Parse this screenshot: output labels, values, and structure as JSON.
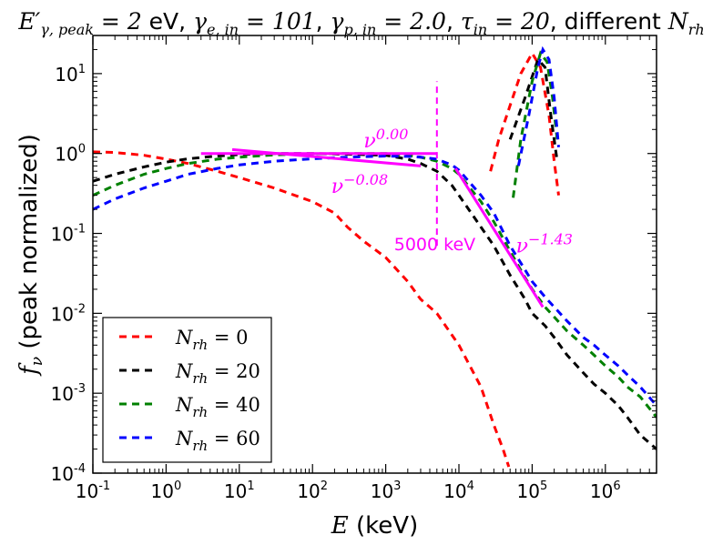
{
  "chart_data": {
    "type": "line",
    "title": {
      "parts": [
        {
          "text": "E′",
          "math": true
        },
        {
          "text": "γ, peak",
          "math": true,
          "sub": true
        },
        {
          "text": " = 2",
          "math": true
        },
        {
          "text": " eV, ",
          "math": false
        },
        {
          "text": "γ",
          "math": true
        },
        {
          "text": "e, in",
          "math": true,
          "sub": true
        },
        {
          "text": " = 101",
          "math": true
        },
        {
          "text": ", ",
          "math": false
        },
        {
          "text": "γ",
          "math": true
        },
        {
          "text": "p, in",
          "math": true,
          "sub": true
        },
        {
          "text": " = 2.0",
          "math": true
        },
        {
          "text": ", ",
          "math": false
        },
        {
          "text": "τ",
          "math": true
        },
        {
          "text": "in",
          "math": true,
          "sub": true
        },
        {
          "text": " = 20",
          "math": true
        },
        {
          "text": ", different ",
          "math": false
        },
        {
          "text": "N",
          "math": true
        },
        {
          "text": "rh",
          "math": true,
          "sub": true
        }
      ]
    },
    "xlabel": {
      "math": "E",
      "text": " (keV)"
    },
    "ylabel": {
      "math": "f",
      "sub": "ν",
      "text": " (peak normalized)"
    },
    "xscale": "log",
    "yscale": "log",
    "xlim": [
      0.1,
      5000000
    ],
    "ylim": [
      0.0001,
      30
    ],
    "xticks": [
      {
        "value": 0.1,
        "base": "10",
        "exp": "-1"
      },
      {
        "value": 1,
        "base": "10",
        "exp": "0"
      },
      {
        "value": 10,
        "base": "10",
        "exp": "1"
      },
      {
        "value": 100,
        "base": "10",
        "exp": "2"
      },
      {
        "value": 1000,
        "base": "10",
        "exp": "3"
      },
      {
        "value": 10000,
        "base": "10",
        "exp": "4"
      },
      {
        "value": 100000,
        "base": "10",
        "exp": "5"
      },
      {
        "value": 1000000,
        "base": "10",
        "exp": "6"
      }
    ],
    "yticks": [
      {
        "value": 0.0001,
        "base": "10",
        "exp": "-4"
      },
      {
        "value": 0.001,
        "base": "10",
        "exp": "-3"
      },
      {
        "value": 0.01,
        "base": "10",
        "exp": "-2"
      },
      {
        "value": 0.1,
        "base": "10",
        "exp": "-1"
      },
      {
        "value": 1,
        "base": "10",
        "exp": "0"
      },
      {
        "value": 10,
        "base": "10",
        "exp": "1"
      }
    ],
    "legend_position": "lower-left",
    "series": [
      {
        "name": "N_rh = 0",
        "label_math": "N",
        "label_sub": "rh",
        "label_rest": " = 0",
        "color": "#ff0000",
        "segments": [
          [
            [
              0.1,
              1.05
            ],
            [
              0.2,
              1.03
            ],
            [
              0.5,
              0.95
            ],
            [
              1,
              0.85
            ],
            [
              2,
              0.75
            ],
            [
              5,
              0.6
            ],
            [
              10,
              0.5
            ],
            [
              30,
              0.37
            ],
            [
              100,
              0.25
            ],
            [
              200,
              0.18
            ],
            [
              300,
              0.12
            ],
            [
              500,
              0.08
            ],
            [
              1000,
              0.05
            ],
            [
              2000,
              0.025
            ],
            [
              3000,
              0.015
            ],
            [
              5000,
              0.01
            ],
            [
              10000,
              0.004
            ],
            [
              20000,
              0.0012
            ],
            [
              30000,
              0.0004
            ],
            [
              40000,
              0.0002
            ],
            [
              48000,
              0.00012
            ]
          ],
          [
            [
              27000,
              0.6
            ],
            [
              35000,
              1.5
            ],
            [
              50000,
              4
            ],
            [
              70000,
              10
            ],
            [
              100000,
              18
            ],
            [
              130000,
              12
            ],
            [
              170000,
              3
            ],
            [
              200000,
              0.8
            ],
            [
              230000,
              0.3
            ]
          ]
        ]
      },
      {
        "name": "N_rh = 20",
        "label_math": "N",
        "label_sub": "rh",
        "label_rest": " = 20",
        "color": "#000000",
        "segments": [
          [
            [
              0.1,
              0.45
            ],
            [
              0.2,
              0.55
            ],
            [
              0.5,
              0.68
            ],
            [
              1,
              0.78
            ],
            [
              2,
              0.86
            ],
            [
              5,
              0.93
            ],
            [
              10,
              0.97
            ],
            [
              30,
              1.0
            ],
            [
              100,
              1.0
            ],
            [
              300,
              0.98
            ],
            [
              1000,
              0.95
            ],
            [
              2000,
              0.85
            ],
            [
              3000,
              0.75
            ],
            [
              5000,
              0.6
            ],
            [
              8000,
              0.4
            ],
            [
              10000,
              0.3
            ],
            [
              20000,
              0.12
            ],
            [
              30000,
              0.07
            ],
            [
              50000,
              0.03
            ],
            [
              80000,
              0.015
            ],
            [
              100000,
              0.01
            ],
            [
              150000,
              0.007
            ],
            [
              200000,
              0.005
            ],
            [
              300000,
              0.003
            ],
            [
              500000,
              0.0018
            ],
            [
              700000,
              0.0013
            ],
            [
              1000000,
              0.001
            ],
            [
              1500000,
              0.0007
            ],
            [
              2000000,
              0.0005
            ],
            [
              3000000,
              0.0003
            ],
            [
              5000000,
              0.0002
            ]
          ],
          [
            [
              50000,
              1.5
            ],
            [
              80000,
              5
            ],
            [
              120000,
              15
            ],
            [
              150000,
              12
            ],
            [
              180000,
              3
            ],
            [
              220000,
              0.8
            ]
          ]
        ]
      },
      {
        "name": "N_rh = 40",
        "label_math": "N",
        "label_sub": "rh",
        "label_rest": " = 40",
        "color": "#008000",
        "segments": [
          [
            [
              0.1,
              0.3
            ],
            [
              0.2,
              0.4
            ],
            [
              0.5,
              0.55
            ],
            [
              1,
              0.65
            ],
            [
              2,
              0.75
            ],
            [
              5,
              0.85
            ],
            [
              10,
              0.9
            ],
            [
              30,
              0.96
            ],
            [
              100,
              0.99
            ],
            [
              300,
              1.0
            ],
            [
              1000,
              1.0
            ],
            [
              2000,
              0.95
            ],
            [
              3000,
              0.9
            ],
            [
              5000,
              0.8
            ],
            [
              8000,
              0.65
            ],
            [
              10000,
              0.55
            ],
            [
              20000,
              0.25
            ],
            [
              30000,
              0.14
            ],
            [
              50000,
              0.06
            ],
            [
              80000,
              0.028
            ],
            [
              100000,
              0.02
            ],
            [
              150000,
              0.012
            ],
            [
              200000,
              0.009
            ],
            [
              300000,
              0.006
            ],
            [
              500000,
              0.004
            ],
            [
              700000,
              0.003
            ],
            [
              1000000,
              0.0022
            ],
            [
              1500000,
              0.0016
            ],
            [
              2000000,
              0.0012
            ],
            [
              3000000,
              0.0009
            ],
            [
              5000000,
              0.0005
            ]
          ],
          [
            [
              55000,
              0.28
            ],
            [
              70000,
              1.5
            ],
            [
              100000,
              8
            ],
            [
              130000,
              18
            ],
            [
              160000,
              14
            ],
            [
              190000,
              5
            ],
            [
              220000,
              1.5
            ]
          ]
        ]
      },
      {
        "name": "N_rh = 60",
        "label_math": "N",
        "label_sub": "rh",
        "label_rest": " = 60",
        "color": "#0000ff",
        "segments": [
          [
            [
              0.1,
              0.2
            ],
            [
              0.2,
              0.27
            ],
            [
              0.5,
              0.37
            ],
            [
              1,
              0.45
            ],
            [
              2,
              0.55
            ],
            [
              5,
              0.65
            ],
            [
              10,
              0.72
            ],
            [
              30,
              0.8
            ],
            [
              100,
              0.86
            ],
            [
              300,
              0.9
            ],
            [
              1000,
              0.93
            ],
            [
              2000,
              0.92
            ],
            [
              3000,
              0.9
            ],
            [
              5000,
              0.85
            ],
            [
              8000,
              0.72
            ],
            [
              10000,
              0.62
            ],
            [
              20000,
              0.3
            ],
            [
              30000,
              0.18
            ],
            [
              50000,
              0.07
            ],
            [
              80000,
              0.035
            ],
            [
              100000,
              0.025
            ],
            [
              150000,
              0.016
            ],
            [
              200000,
              0.012
            ],
            [
              300000,
              0.008
            ],
            [
              500000,
              0.005
            ],
            [
              700000,
              0.004
            ],
            [
              1000000,
              0.003
            ],
            [
              1500000,
              0.0022
            ],
            [
              2000000,
              0.0017
            ],
            [
              3000000,
              0.0012
            ],
            [
              5000000,
              0.0007
            ]
          ],
          [
            [
              65000,
              0.7
            ],
            [
              90000,
              3
            ],
            [
              120000,
              12
            ],
            [
              140000,
              20
            ],
            [
              170000,
              15
            ],
            [
              200000,
              5
            ],
            [
              230000,
              1.2
            ]
          ]
        ]
      }
    ],
    "fit_lines": [
      {
        "name": "fit-nu-0.00",
        "color": "#ff00ff",
        "points": [
          [
            3,
            1.0
          ],
          [
            5000,
            1.0
          ]
        ]
      },
      {
        "name": "fit-nu-minus-0.08",
        "color": "#ff00ff",
        "points": [
          [
            8,
            1.12
          ],
          [
            3000,
            0.7
          ]
        ]
      },
      {
        "name": "fit-nu-minus-1.43",
        "color": "#ff00ff",
        "points": [
          [
            9000,
            0.65
          ],
          [
            140000,
            0.012
          ]
        ]
      }
    ],
    "vline": {
      "x": 5000,
      "y_range": [
        0.07,
        8
      ],
      "color": "#ff00ff"
    },
    "annotations": [
      {
        "name": "annotation-nu-0.00",
        "kind": "power",
        "base": "ν",
        "exp": "0.00",
        "x": 500,
        "y": 1.2
      },
      {
        "name": "annotation-nu-minus-0.08",
        "kind": "power",
        "base": "ν",
        "exp": "−0.08",
        "x": 180,
        "y": 0.32
      },
      {
        "name": "annotation-5000-keV",
        "kind": "text",
        "text": "5000 keV",
        "x": 1300,
        "y": 0.062
      },
      {
        "name": "annotation-nu-minus-1.43",
        "kind": "power",
        "base": "ν",
        "exp": "−1.43",
        "x": 60000,
        "y": 0.058
      }
    ]
  }
}
